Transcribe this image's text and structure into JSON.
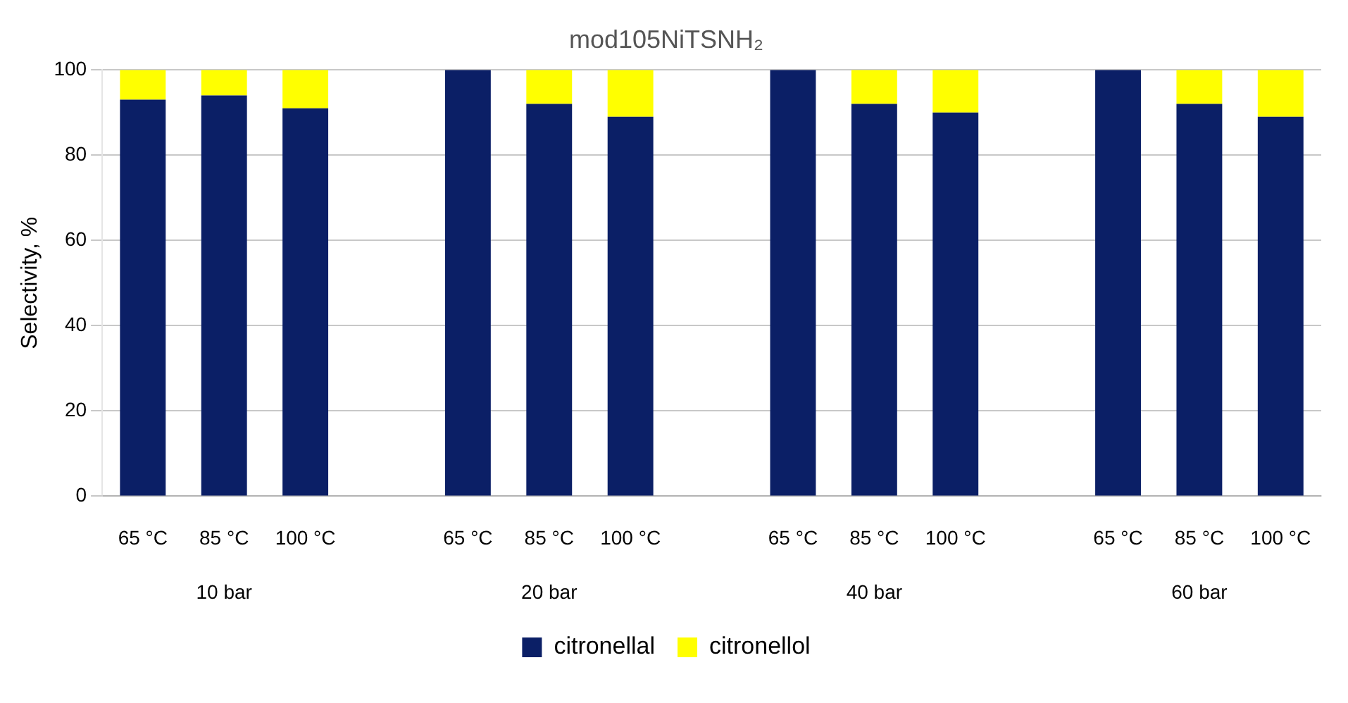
{
  "chart_data": {
    "type": "bar",
    "title": "mod105NiTSNH₂",
    "ylabel": "Selectivity, %",
    "categories": [
      "65 °C",
      "85 °C",
      "100 °C",
      null,
      "65 °C",
      "85 °C",
      "100 °C",
      null,
      "65 °C",
      "85 °C",
      "100 °C",
      null,
      "65 °C",
      "85 °C",
      "100 °C"
    ],
    "series": [
      {
        "name": "citronellal",
        "color": "#0b1f66",
        "values": [
          93,
          94,
          91,
          null,
          100,
          92,
          89,
          null,
          100,
          92,
          90,
          null,
          100,
          92,
          89
        ]
      },
      {
        "name": "citronellol",
        "color": "#ffff00",
        "values": [
          7,
          6,
          9,
          null,
          0,
          8,
          11,
          null,
          0,
          8,
          10,
          null,
          0,
          8,
          11
        ]
      }
    ],
    "stacked": true,
    "ylim": [
      0,
      100
    ],
    "yticks": [
      0,
      20,
      40,
      60,
      80,
      100
    ],
    "grid": "y",
    "legend": "bottom",
    "annotations": [
      "10 bar",
      "20 bar",
      "40 bar",
      "60 bar"
    ]
  }
}
